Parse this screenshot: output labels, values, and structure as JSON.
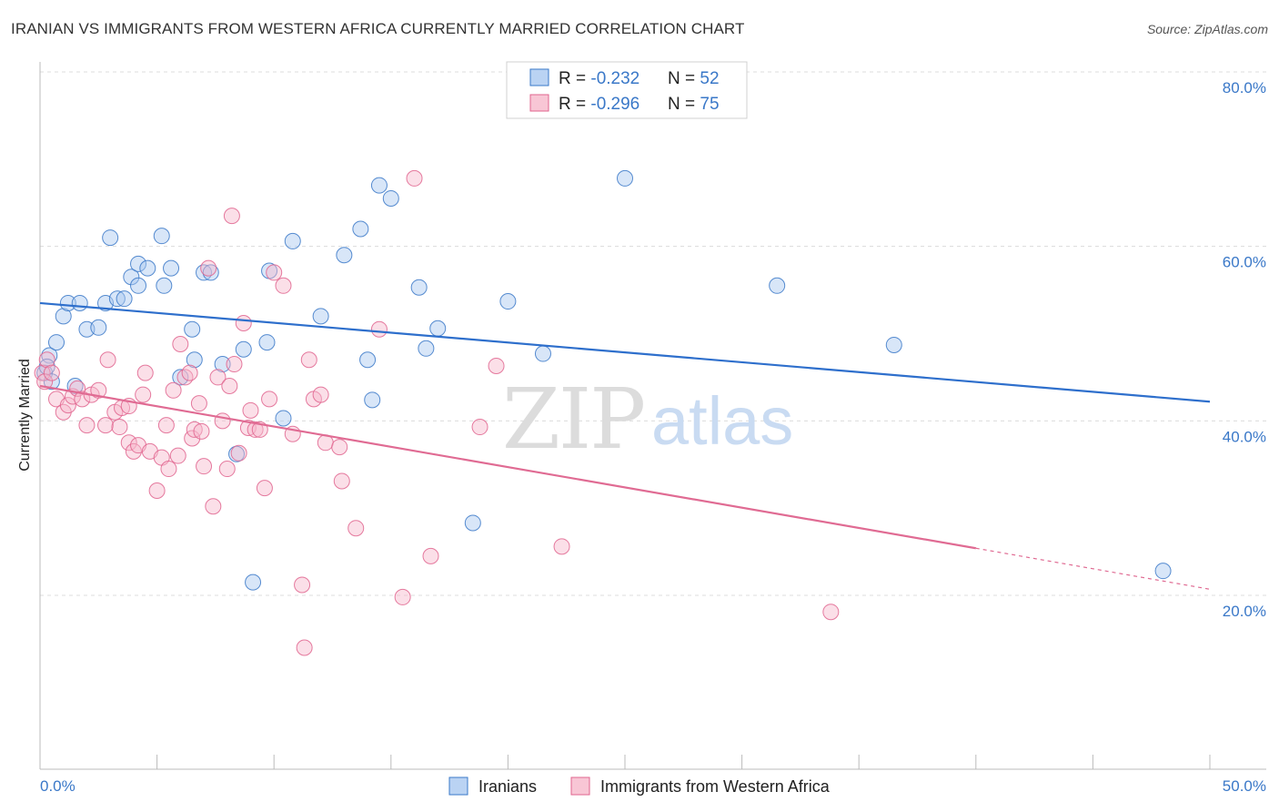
{
  "title": "IRANIAN VS IMMIGRANTS FROM WESTERN AFRICA CURRENTLY MARRIED CORRELATION CHART",
  "source": "Source: ZipAtlas.com",
  "watermark": {
    "zip": "ZIP",
    "atlas": "atlas"
  },
  "legend": {
    "rows": [
      {
        "r_label": "R = ",
        "r_value": "-0.232",
        "n_label": "N = ",
        "n_value": "52"
      },
      {
        "r_label": "R = ",
        "r_value": "-0.296",
        "n_label": "N = ",
        "n_value": "75"
      }
    ]
  },
  "bottom_legend": [
    "Iranians",
    "Immigrants from Western Africa"
  ],
  "colors": {
    "blue": "#3a78c8",
    "blue_fill": "#a9c8f0",
    "blue_line": "#2e6fcc",
    "pink": "#e0648e",
    "pink_fill": "#f6b8cb",
    "pink_line": "#e06b93",
    "grid": "#d8d8d8",
    "text_blue": "#3a78c8"
  },
  "chart_data": {
    "type": "scatter",
    "title": "IRANIAN VS IMMIGRANTS FROM WESTERN AFRICA CURRENTLY MARRIED CORRELATION CHART",
    "xlabel": "",
    "ylabel": "Currently Married",
    "xlim": [
      0,
      50
    ],
    "ylim": [
      0,
      83
    ],
    "x_tick_labels": [
      "0.0%",
      "50.0%"
    ],
    "y_ticks": [
      20,
      40,
      60,
      80
    ],
    "y_tick_labels": [
      "20.0%",
      "40.0%",
      "60.0%",
      "80.0%"
    ],
    "grid": true,
    "legend_position": "top-center",
    "series": [
      {
        "name": "Iranians",
        "color": "#3a78c8",
        "trend": {
          "x": [
            0,
            50
          ],
          "y": [
            53.5,
            42.2
          ]
        },
        "points": [
          [
            0.2,
            45.5
          ],
          [
            0.4,
            47.5
          ],
          [
            0.7,
            49.0
          ],
          [
            1.0,
            52.0
          ],
          [
            1.2,
            53.5
          ],
          [
            1.7,
            53.5
          ],
          [
            2.0,
            50.5
          ],
          [
            2.5,
            50.7
          ],
          [
            2.8,
            53.5
          ],
          [
            3.0,
            61.0
          ],
          [
            3.3,
            54.0
          ],
          [
            3.6,
            54.0
          ],
          [
            3.9,
            56.5
          ],
          [
            4.2,
            58.0
          ],
          [
            4.6,
            57.5
          ],
          [
            4.2,
            55.5
          ],
          [
            5.3,
            55.5
          ],
          [
            5.2,
            61.2
          ],
          [
            5.6,
            57.5
          ],
          [
            6.5,
            50.5
          ],
          [
            6.0,
            45.0
          ],
          [
            6.6,
            47.0
          ],
          [
            7.0,
            57.0
          ],
          [
            7.3,
            57.0
          ],
          [
            7.8,
            46.5
          ],
          [
            8.4,
            36.2
          ],
          [
            8.7,
            48.2
          ],
          [
            9.1,
            21.5
          ],
          [
            9.7,
            49.0
          ],
          [
            9.8,
            57.2
          ],
          [
            10.4,
            40.3
          ],
          [
            10.8,
            60.6
          ],
          [
            12.0,
            52.0
          ],
          [
            13.0,
            59.0
          ],
          [
            13.7,
            62.0
          ],
          [
            14.0,
            47.0
          ],
          [
            14.2,
            42.4
          ],
          [
            14.5,
            67.0
          ],
          [
            15.0,
            65.5
          ],
          [
            16.2,
            55.3
          ],
          [
            16.5,
            48.3
          ],
          [
            17.0,
            50.6
          ],
          [
            18.5,
            28.3
          ],
          [
            20.0,
            53.7
          ],
          [
            21.5,
            47.7
          ],
          [
            25.0,
            67.8
          ],
          [
            31.5,
            55.5
          ],
          [
            36.5,
            48.7
          ],
          [
            48.0,
            22.8
          ],
          [
            0.3,
            46.2
          ],
          [
            0.5,
            44.5
          ],
          [
            1.5,
            44.0
          ]
        ]
      },
      {
        "name": "Immigrants from Western Africa",
        "color": "#e0648e",
        "trend": {
          "x": [
            0,
            40
          ],
          "y": [
            44.0,
            25.4
          ]
        },
        "trend_dashed": {
          "x": [
            40,
            50
          ],
          "y": [
            25.4,
            20.7
          ]
        },
        "points": [
          [
            0.1,
            45.5
          ],
          [
            0.2,
            44.5
          ],
          [
            0.3,
            47.0
          ],
          [
            0.5,
            45.5
          ],
          [
            0.7,
            42.5
          ],
          [
            1.0,
            41.0
          ],
          [
            1.2,
            41.8
          ],
          [
            1.4,
            42.8
          ],
          [
            1.6,
            43.7
          ],
          [
            1.8,
            42.5
          ],
          [
            2.0,
            39.5
          ],
          [
            2.2,
            43.0
          ],
          [
            2.5,
            43.5
          ],
          [
            2.8,
            39.5
          ],
          [
            2.9,
            47.0
          ],
          [
            3.2,
            41.0
          ],
          [
            3.4,
            39.3
          ],
          [
            3.5,
            41.5
          ],
          [
            3.8,
            37.5
          ],
          [
            4.0,
            36.5
          ],
          [
            4.2,
            37.2
          ],
          [
            4.4,
            43.0
          ],
          [
            4.5,
            45.5
          ],
          [
            4.7,
            36.5
          ],
          [
            5.0,
            32.0
          ],
          [
            5.2,
            35.8
          ],
          [
            5.4,
            39.5
          ],
          [
            5.5,
            34.5
          ],
          [
            5.7,
            43.5
          ],
          [
            5.9,
            36.0
          ],
          [
            6.0,
            48.8
          ],
          [
            6.2,
            45.0
          ],
          [
            6.4,
            45.5
          ],
          [
            6.5,
            38.0
          ],
          [
            6.6,
            39.0
          ],
          [
            6.8,
            42.0
          ],
          [
            6.9,
            38.8
          ],
          [
            7.0,
            34.8
          ],
          [
            7.2,
            57.5
          ],
          [
            7.4,
            30.2
          ],
          [
            7.6,
            45.0
          ],
          [
            7.8,
            40.0
          ],
          [
            8.0,
            34.5
          ],
          [
            8.1,
            44.0
          ],
          [
            8.3,
            46.5
          ],
          [
            8.5,
            36.3
          ],
          [
            8.7,
            51.2
          ],
          [
            8.9,
            39.2
          ],
          [
            9.0,
            41.2
          ],
          [
            9.2,
            39.0
          ],
          [
            9.4,
            39.0
          ],
          [
            9.6,
            32.3
          ],
          [
            9.8,
            42.5
          ],
          [
            10.0,
            57.0
          ],
          [
            10.4,
            55.5
          ],
          [
            10.8,
            38.5
          ],
          [
            11.2,
            21.2
          ],
          [
            11.3,
            14.0
          ],
          [
            11.5,
            47.0
          ],
          [
            11.7,
            42.5
          ],
          [
            12.0,
            43.0
          ],
          [
            12.2,
            37.5
          ],
          [
            12.8,
            37.0
          ],
          [
            12.9,
            33.1
          ],
          [
            13.5,
            27.7
          ],
          [
            14.5,
            50.5
          ],
          [
            15.5,
            19.8
          ],
          [
            16.0,
            67.8
          ],
          [
            16.7,
            24.5
          ],
          [
            18.8,
            39.3
          ],
          [
            19.5,
            46.3
          ],
          [
            22.3,
            25.6
          ],
          [
            33.8,
            18.1
          ],
          [
            8.2,
            63.5
          ],
          [
            3.8,
            41.7
          ]
        ]
      }
    ]
  }
}
